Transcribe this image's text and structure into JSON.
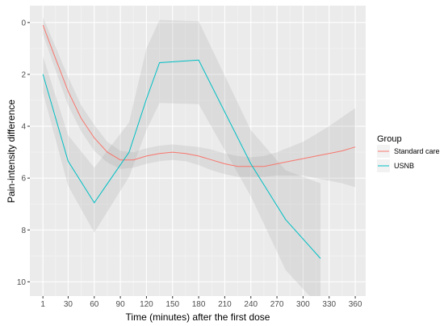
{
  "chart_data": {
    "type": "line",
    "title": "",
    "xlabel": "Time (minutes) after the first dose",
    "ylabel": "Pain-intensity difference",
    "xlim": [
      -14,
      372
    ],
    "ylim": [
      10.55,
      -0.65
    ],
    "y_reversed": true,
    "x_ticks": [
      1,
      30,
      60,
      90,
      120,
      150,
      180,
      210,
      240,
      270,
      300,
      330,
      360
    ],
    "x_tick_labels": [
      "1",
      "30",
      "60",
      "90",
      "120",
      "150",
      "180",
      "210",
      "240",
      "270",
      "300",
      "330",
      "360"
    ],
    "y_ticks": [
      0,
      2,
      4,
      6,
      8,
      10
    ],
    "y_tick_labels": [
      "0",
      "2",
      "4",
      "6",
      "8",
      "10"
    ],
    "grid": true,
    "legend": {
      "title": "Group",
      "placement": "right",
      "entries": [
        "Standard care",
        "USNB"
      ]
    },
    "series": [
      {
        "name": "Standard care",
        "color": "#F8766D",
        "x": [
          1,
          15,
          30,
          45,
          60,
          75,
          90,
          105,
          120,
          135,
          150,
          165,
          180,
          195,
          210,
          225,
          240,
          255,
          270,
          285,
          300,
          315,
          330,
          345,
          360
        ],
        "y": [
          0.1,
          1.35,
          2.65,
          3.7,
          4.45,
          5.0,
          5.3,
          5.3,
          5.15,
          5.05,
          5.0,
          5.05,
          5.15,
          5.3,
          5.45,
          5.55,
          5.55,
          5.55,
          5.45,
          5.35,
          5.25,
          5.15,
          5.05,
          4.95,
          4.8
        ],
        "ci_lower": [
          -0.2,
          0.9,
          2.1,
          3.2,
          3.95,
          4.6,
          4.95,
          5.0,
          4.85,
          4.75,
          4.7,
          4.75,
          4.8,
          4.9,
          5.05,
          5.15,
          5.2,
          5.15,
          5.0,
          4.8,
          4.6,
          4.3,
          4.0,
          3.65,
          3.3
        ],
        "ci_upper": [
          0.45,
          1.8,
          3.2,
          4.2,
          4.95,
          5.4,
          5.65,
          5.6,
          5.45,
          5.35,
          5.3,
          5.35,
          5.5,
          5.7,
          5.85,
          5.95,
          5.95,
          5.95,
          5.9,
          5.9,
          5.9,
          6.0,
          6.1,
          6.2,
          6.35
        ]
      },
      {
        "name": "USNB",
        "color": "#00BFC4",
        "x": [
          1,
          30,
          60,
          100,
          120,
          135,
          180,
          240,
          280,
          320
        ],
        "y": [
          2.0,
          5.35,
          6.95,
          5.0,
          2.95,
          1.55,
          1.45,
          5.45,
          7.6,
          9.1
        ],
        "ci_lower": [
          1.3,
          4.35,
          5.6,
          3.85,
          1.0,
          -0.1,
          -0.05,
          4.15,
          5.7,
          6.2
        ],
        "ci_upper": [
          2.7,
          6.3,
          8.1,
          5.95,
          4.15,
          3.1,
          3.15,
          6.7,
          9.55,
          11.0
        ]
      }
    ]
  }
}
